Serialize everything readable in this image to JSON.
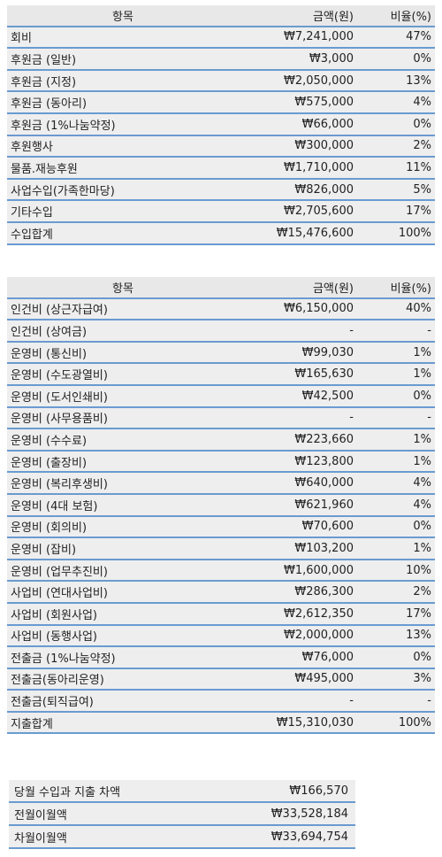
{
  "income": {
    "header": {
      "item": "항목",
      "amount": "금액(원)",
      "ratio": "비율(%)"
    },
    "rows": [
      {
        "item": "회비",
        "amount": "₩7,241,000",
        "ratio": "47%"
      },
      {
        "item": "후원금 (일반)",
        "amount": "₩3,000",
        "ratio": "0%"
      },
      {
        "item": "후원금 (지정)",
        "amount": "₩2,050,000",
        "ratio": "13%"
      },
      {
        "item": "후원금 (동아리)",
        "amount": "₩575,000",
        "ratio": "4%"
      },
      {
        "item": "후원금 (1%나눔약정)",
        "amount": "₩66,000",
        "ratio": "0%"
      },
      {
        "item": "후원행사",
        "amount": "₩300,000",
        "ratio": "2%"
      },
      {
        "item": "물품.재능후원",
        "amount": "₩1,710,000",
        "ratio": "11%"
      },
      {
        "item": "사업수입(가족한마당)",
        "amount": "₩826,000",
        "ratio": "5%"
      },
      {
        "item": "기타수입",
        "amount": "₩2,705,600",
        "ratio": "17%"
      },
      {
        "item": "수입합계",
        "amount": "₩15,476,600",
        "ratio": "100%"
      }
    ]
  },
  "expense": {
    "header": {
      "item": "항목",
      "amount": "금액(원)",
      "ratio": "비율(%)"
    },
    "rows": [
      {
        "item": "인건비 (상근자급여)",
        "amount": "₩6,150,000",
        "ratio": "40%"
      },
      {
        "item": "인건비 (상여금)",
        "amount": "-",
        "ratio": "-"
      },
      {
        "item": "운영비 (통신비)",
        "amount": "₩99,030",
        "ratio": "1%"
      },
      {
        "item": "운영비 (수도광열비)",
        "amount": "₩165,630",
        "ratio": "1%"
      },
      {
        "item": "운영비 (도서인쇄비)",
        "amount": "₩42,500",
        "ratio": "0%"
      },
      {
        "item": "운영비 (사무용품비)",
        "amount": "-",
        "ratio": "-"
      },
      {
        "item": "운영비 (수수료)",
        "amount": "₩223,660",
        "ratio": "1%"
      },
      {
        "item": "운영비 (출장비)",
        "amount": "₩123,800",
        "ratio": "1%"
      },
      {
        "item": "운영비 (복리후생비)",
        "amount": "₩640,000",
        "ratio": "4%"
      },
      {
        "item": "운영비 (4대 보험)",
        "amount": "₩621,960",
        "ratio": "4%"
      },
      {
        "item": "운영비 (회의비)",
        "amount": "₩70,600",
        "ratio": "0%"
      },
      {
        "item": "운영비 (잡비)",
        "amount": "₩103,200",
        "ratio": "1%"
      },
      {
        "item": "운영비 (업무추진비)",
        "amount": "₩1,600,000",
        "ratio": "10%"
      },
      {
        "item": "사업비 (연대사업비)",
        "amount": "₩286,300",
        "ratio": "2%"
      },
      {
        "item": "사업비 (회원사업)",
        "amount": "₩2,612,350",
        "ratio": "17%"
      },
      {
        "item": "사업비 (동행사업)",
        "amount": "₩2,000,000",
        "ratio": "13%"
      },
      {
        "item": "전출금 (1%나눔약정)",
        "amount": "₩76,000",
        "ratio": "0%"
      },
      {
        "item": "전출금(동아리운영)",
        "amount": "₩495,000",
        "ratio": "3%"
      },
      {
        "item": "전출금(퇴직급여)",
        "amount": "-",
        "ratio": "-"
      },
      {
        "item": "지출합계",
        "amount": "₩15,310,030",
        "ratio": "100%"
      }
    ]
  },
  "summary": [
    {
      "label": "당월 수입과 지출 차액",
      "amount": "₩166,570"
    },
    {
      "label": "전월이월액",
      "amount": "₩33,528,184"
    },
    {
      "label": "차월이월액",
      "amount": "₩33,694,754"
    }
  ]
}
